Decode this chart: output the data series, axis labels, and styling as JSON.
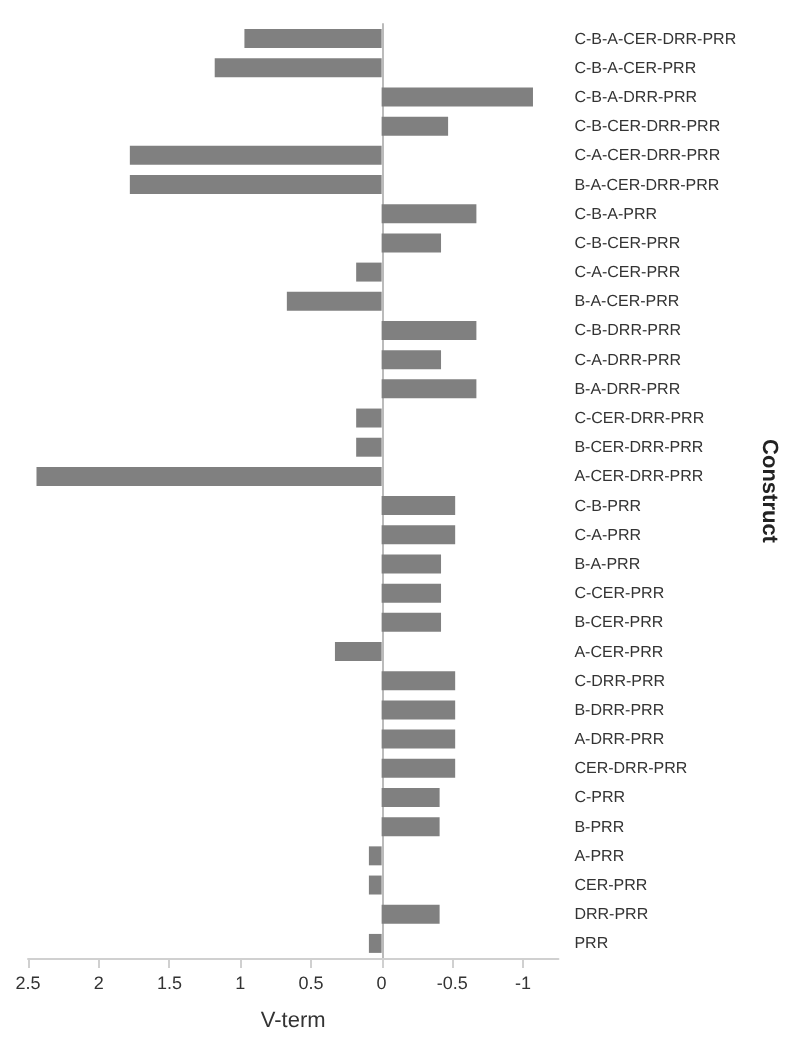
{
  "chart_data": {
    "type": "bar",
    "orientation": "horizontal",
    "xlabel": "V-term",
    "ylabel": "Construct",
    "categories": [
      "C-B-A-CER-DRR-PRR",
      "C-B-A-CER-PRR",
      "C-B-A-DRR-PRR",
      "C-B-CER-DRR-PRR",
      "C-A-CER-DRR-PRR",
      "B-A-CER-DRR-PRR",
      "C-B-A-PRR",
      "C-B-CER-PRR",
      "C-A-CER-PRR",
      "B-A-CER-PRR",
      "C-B-DRR-PRR",
      "C-A-DRR-PRR",
      "B-A-DRR-PRR",
      "C-CER-DRR-PRR",
      "B-CER-DRR-PRR",
      "A-CER-DRR-PRR",
      "C-B-PRR",
      "C-A-PRR",
      "B-A-PRR",
      "C-CER-PRR",
      "B-CER-PRR",
      "A-CER-PRR",
      "C-DRR-PRR",
      "B-DRR-PRR",
      "A-DRR-PRR",
      "CER-DRR-PRR",
      "C-PRR",
      "B-PRR",
      "A-PRR",
      "CER-PRR",
      "DRR-PRR",
      "PRR"
    ],
    "values": [
      0.97,
      1.18,
      -1.07,
      -0.47,
      1.78,
      1.78,
      -0.67,
      -0.42,
      0.18,
      0.67,
      -0.67,
      -0.42,
      -0.67,
      0.18,
      0.18,
      2.44,
      -0.52,
      -0.52,
      -0.42,
      -0.42,
      -0.42,
      0.33,
      -0.52,
      -0.52,
      -0.52,
      -0.52,
      -0.41,
      -0.41,
      0.09,
      0.09,
      -0.41,
      0.09
    ],
    "color": "#808080",
    "xlim": [
      2.5,
      -1.25
    ],
    "xticks": [
      2.5,
      2,
      1.5,
      1,
      0.5,
      0,
      -0.5,
      -1
    ]
  }
}
